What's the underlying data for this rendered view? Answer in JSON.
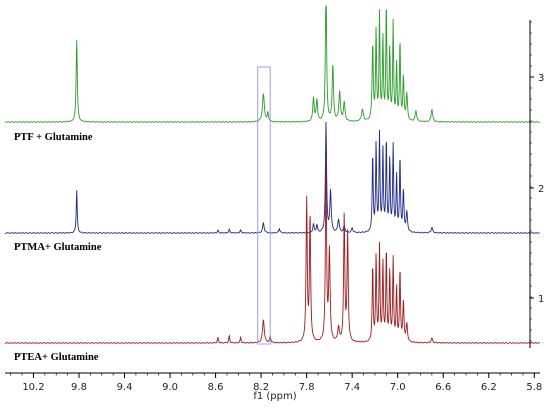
{
  "chart_data": {
    "type": "line",
    "xlabel": "f1 (ppm)",
    "xlim": [
      10.45,
      5.75
    ],
    "x_reversed": true,
    "x_ticks": [
      "10.2",
      "9.8",
      "9.4",
      "9.0",
      "8.6",
      "8.2",
      "7.8",
      "7.4",
      "7.0",
      "6.6",
      "6.2",
      "5.8"
    ],
    "y_ticks": [
      "1",
      "2",
      "3"
    ],
    "highlight_box": {
      "x_from": 8.23,
      "x_to": 8.12,
      "color": "#9c9cf0"
    },
    "series": [
      {
        "name": "PTF + Glutamine",
        "stack_index": 3,
        "color": "#2a9d2a",
        "peaks": [
          [
            9.82,
            0.92,
            0.006
          ],
          [
            8.18,
            0.31,
            0.01
          ],
          [
            8.14,
            0.1,
            0.006
          ],
          [
            7.74,
            0.27,
            0.007
          ],
          [
            7.71,
            0.24,
            0.007
          ],
          [
            7.63,
            1.6,
            0.006
          ],
          [
            7.57,
            0.62,
            0.007
          ],
          [
            7.51,
            0.33,
            0.008
          ],
          [
            7.47,
            0.21,
            0.008
          ],
          [
            7.31,
            0.13,
            0.01
          ],
          [
            7.22,
            0.85,
            0.006
          ],
          [
            7.19,
            1.0,
            0.005
          ],
          [
            7.16,
            1.18,
            0.005
          ],
          [
            7.13,
            0.92,
            0.005
          ],
          [
            7.1,
            1.28,
            0.005
          ],
          [
            7.07,
            0.78,
            0.005
          ],
          [
            7.04,
            1.08,
            0.005
          ],
          [
            7.01,
            0.62,
            0.005
          ],
          [
            6.98,
            0.88,
            0.005
          ],
          [
            6.95,
            0.48,
            0.006
          ],
          [
            6.92,
            0.3,
            0.007
          ],
          [
            6.84,
            0.12,
            0.008
          ],
          [
            6.7,
            0.14,
            0.008
          ]
        ]
      },
      {
        "name": "PTMA+ Glutamine",
        "stack_index": 2,
        "color": "#1f2a8c",
        "peaks": [
          [
            9.82,
            0.48,
            0.005
          ],
          [
            8.58,
            0.03,
            0.006
          ],
          [
            8.48,
            0.04,
            0.006
          ],
          [
            8.38,
            0.03,
            0.006
          ],
          [
            8.18,
            0.11,
            0.008
          ],
          [
            8.04,
            0.05,
            0.006
          ],
          [
            7.74,
            0.1,
            0.006
          ],
          [
            7.71,
            0.09,
            0.006
          ],
          [
            7.63,
            1.22,
            0.006
          ],
          [
            7.59,
            0.46,
            0.007
          ],
          [
            7.52,
            0.15,
            0.008
          ],
          [
            7.47,
            0.07,
            0.008
          ],
          [
            7.4,
            0.05,
            0.008
          ],
          [
            7.22,
            0.86,
            0.005
          ],
          [
            7.19,
            0.98,
            0.005
          ],
          [
            7.16,
            1.08,
            0.005
          ],
          [
            7.13,
            0.92,
            0.005
          ],
          [
            7.1,
            1.02,
            0.005
          ],
          [
            7.07,
            0.8,
            0.005
          ],
          [
            7.04,
            0.95,
            0.005
          ],
          [
            7.01,
            0.62,
            0.005
          ],
          [
            6.98,
            0.82,
            0.005
          ],
          [
            6.95,
            0.45,
            0.006
          ],
          [
            6.92,
            0.22,
            0.007
          ],
          [
            6.7,
            0.06,
            0.008
          ]
        ]
      },
      {
        "name": "PTEA+ Glutamine",
        "stack_index": 1,
        "color": "#a01c1c",
        "peaks": [
          [
            8.58,
            0.06,
            0.005
          ],
          [
            8.48,
            0.08,
            0.005
          ],
          [
            8.38,
            0.06,
            0.005
          ],
          [
            8.18,
            0.26,
            0.009
          ],
          [
            8.12,
            0.07,
            0.006
          ],
          [
            7.8,
            1.58,
            0.006
          ],
          [
            7.77,
            1.4,
            0.006
          ],
          [
            7.63,
            1.95,
            0.006
          ],
          [
            7.6,
            1.0,
            0.007
          ],
          [
            7.52,
            0.16,
            0.008
          ],
          [
            7.47,
            1.4,
            0.006
          ],
          [
            7.44,
            1.2,
            0.006
          ],
          [
            7.22,
            0.85,
            0.005
          ],
          [
            7.19,
            0.95,
            0.005
          ],
          [
            7.16,
            1.05,
            0.005
          ],
          [
            7.13,
            0.88,
            0.005
          ],
          [
            7.1,
            1.02,
            0.005
          ],
          [
            7.07,
            0.78,
            0.005
          ],
          [
            7.04,
            0.92,
            0.005
          ],
          [
            7.01,
            0.6,
            0.005
          ],
          [
            6.98,
            0.8,
            0.005
          ],
          [
            6.95,
            0.44,
            0.006
          ],
          [
            6.92,
            0.2,
            0.007
          ],
          [
            6.7,
            0.05,
            0.008
          ]
        ]
      }
    ]
  }
}
